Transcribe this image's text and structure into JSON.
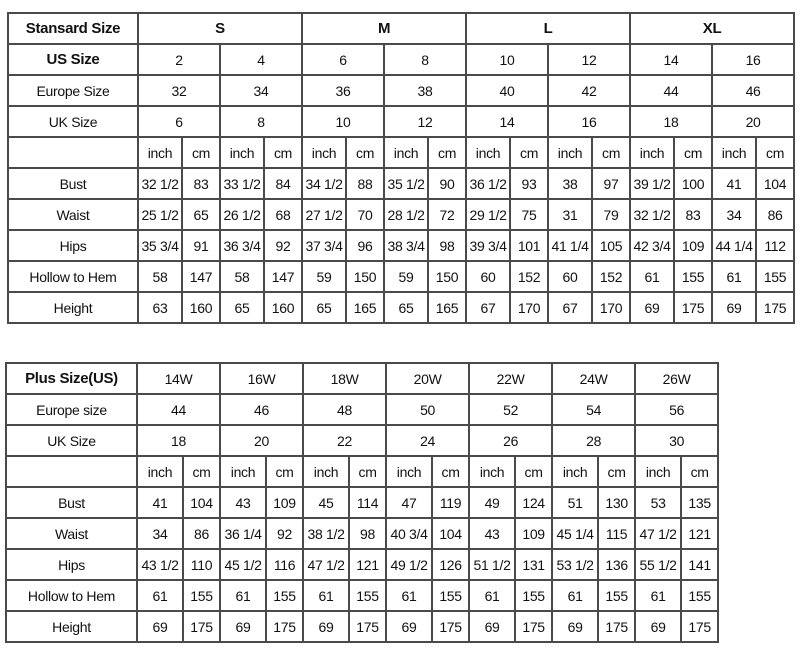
{
  "standard_chart": {
    "title": "Stansard Size",
    "size_groups": [
      "S",
      "M",
      "L",
      "XL"
    ],
    "us_size_label": "US Size",
    "us_sizes": [
      "2",
      "4",
      "6",
      "8",
      "10",
      "12",
      "14",
      "16"
    ],
    "europe_label": "Europe Size",
    "europe_sizes": [
      "32",
      "34",
      "36",
      "38",
      "40",
      "42",
      "44",
      "46"
    ],
    "uk_label": "UK Size",
    "uk_sizes": [
      "6",
      "8",
      "10",
      "12",
      "14",
      "16",
      "18",
      "20"
    ],
    "unit_inch": "inch",
    "unit_cm": "cm",
    "measurements": [
      {
        "label": "Bust",
        "values": [
          "32 1/2",
          "83",
          "33 1/2",
          "84",
          "34 1/2",
          "88",
          "35 1/2",
          "90",
          "36 1/2",
          "93",
          "38",
          "97",
          "39 1/2",
          "100",
          "41",
          "104"
        ]
      },
      {
        "label": "Waist",
        "values": [
          "25 1/2",
          "65",
          "26 1/2",
          "68",
          "27 1/2",
          "70",
          "28 1/2",
          "72",
          "29 1/2",
          "75",
          "31",
          "79",
          "32 1/2",
          "83",
          "34",
          "86"
        ]
      },
      {
        "label": "Hips",
        "values": [
          "35 3/4",
          "91",
          "36 3/4",
          "92",
          "37 3/4",
          "96",
          "38 3/4",
          "98",
          "39 3/4",
          "101",
          "41 1/4",
          "105",
          "42 3/4",
          "109",
          "44 1/4",
          "112"
        ]
      },
      {
        "label": "Hollow to Hem",
        "values": [
          "58",
          "147",
          "58",
          "147",
          "59",
          "150",
          "59",
          "150",
          "60",
          "152",
          "60",
          "152",
          "61",
          "155",
          "61",
          "155"
        ]
      },
      {
        "label": "Height",
        "values": [
          "63",
          "160",
          "65",
          "160",
          "65",
          "165",
          "65",
          "165",
          "67",
          "170",
          "67",
          "170",
          "69",
          "175",
          "69",
          "175"
        ]
      }
    ]
  },
  "plus_chart": {
    "title": "Plus Size(US)",
    "us_sizes": [
      "14W",
      "16W",
      "18W",
      "20W",
      "22W",
      "24W",
      "26W"
    ],
    "europe_label": "Europe size",
    "europe_sizes": [
      "44",
      "46",
      "48",
      "50",
      "52",
      "54",
      "56"
    ],
    "uk_label": "UK Size",
    "uk_sizes": [
      "18",
      "20",
      "22",
      "24",
      "26",
      "28",
      "30"
    ],
    "unit_inch": "inch",
    "unit_cm": "cm",
    "measurements": [
      {
        "label": "Bust",
        "values": [
          "41",
          "104",
          "43",
          "109",
          "45",
          "114",
          "47",
          "119",
          "49",
          "124",
          "51",
          "130",
          "53",
          "135"
        ]
      },
      {
        "label": "Waist",
        "values": [
          "34",
          "86",
          "36 1/4",
          "92",
          "38 1/2",
          "98",
          "40 3/4",
          "104",
          "43",
          "109",
          "45 1/4",
          "115",
          "47 1/2",
          "121"
        ]
      },
      {
        "label": "Hips",
        "values": [
          "43 1/2",
          "110",
          "45 1/2",
          "116",
          "47 1/2",
          "121",
          "49 1/2",
          "126",
          "51 1/2",
          "131",
          "53 1/2",
          "136",
          "55 1/2",
          "141"
        ]
      },
      {
        "label": "Hollow to Hem",
        "values": [
          "61",
          "155",
          "61",
          "155",
          "61",
          "155",
          "61",
          "155",
          "61",
          "155",
          "61",
          "155",
          "61",
          "155"
        ]
      },
      {
        "label": "Height",
        "values": [
          "69",
          "175",
          "69",
          "175",
          "69",
          "175",
          "69",
          "175",
          "69",
          "175",
          "69",
          "175",
          "69",
          "175"
        ]
      }
    ]
  }
}
